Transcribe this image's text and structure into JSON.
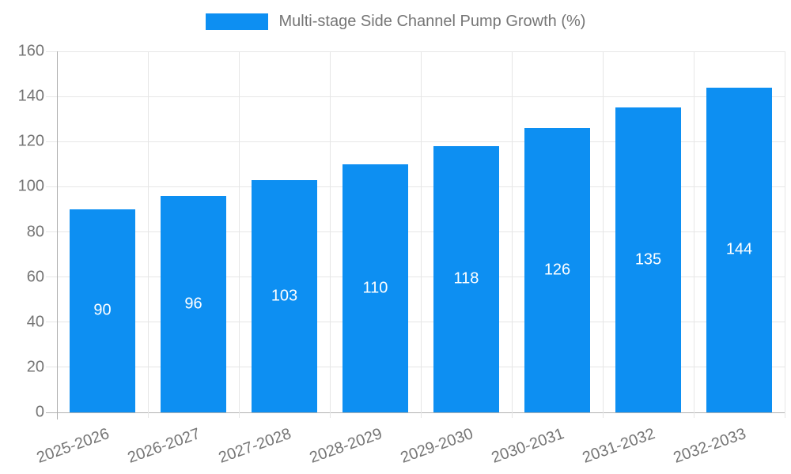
{
  "chart_data": {
    "type": "bar",
    "title": "Multi-stage Side Channel Pump Growth (%)",
    "legend": {
      "label": "Multi-stage Side Channel Pump Growth (%)",
      "position": "top"
    },
    "categories": [
      "2025-2026",
      "2026-2027",
      "2027-2028",
      "2028-2029",
      "2029-2030",
      "2030-2031",
      "2031-2032",
      "2032-2033"
    ],
    "values": [
      90,
      96,
      103,
      110,
      118,
      126,
      135,
      144
    ],
    "xlabel": "",
    "ylabel": "",
    "ylim": [
      0,
      160
    ],
    "y_ticks": [
      0,
      20,
      40,
      60,
      80,
      100,
      120,
      140,
      160
    ],
    "grid": true,
    "legend_position": "top-center",
    "x_tick_rotation_deg": -20,
    "colors": {
      "bar": "#0d8ff2",
      "value_label": "#ffffff",
      "axis_text": "#757575",
      "gridline": "#e6e6e6",
      "axis_line": "#b0b0b0",
      "background": "#ffffff"
    }
  }
}
